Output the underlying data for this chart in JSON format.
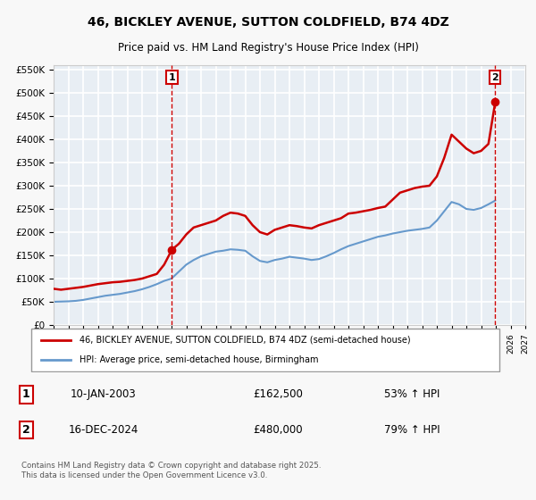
{
  "title": "46, BICKLEY AVENUE, SUTTON COLDFIELD, B74 4DZ",
  "subtitle": "Price paid vs. HM Land Registry's House Price Index (HPI)",
  "legend_line1": "46, BICKLEY AVENUE, SUTTON COLDFIELD, B74 4DZ (semi-detached house)",
  "legend_line2": "HPI: Average price, semi-detached house, Birmingham",
  "label1_date": "10-JAN-2003",
  "label1_price": "£162,500",
  "label1_hpi": "53% ↑ HPI",
  "label2_date": "16-DEC-2024",
  "label2_price": "£480,000",
  "label2_hpi": "79% ↑ HPI",
  "marker1_year": 2003.03,
  "marker1_value": 162500,
  "marker2_year": 2024.96,
  "marker2_value": 480000,
  "vline1_year": 2003.03,
  "vline2_year": 2024.96,
  "red_color": "#cc0000",
  "blue_color": "#6699cc",
  "background_color": "#f0f4f8",
  "plot_bg_color": "#e8eef4",
  "grid_color": "#ffffff",
  "ylim": [
    0,
    560000
  ],
  "xlim_start": 1995,
  "xlim_end": 2027,
  "footer": "Contains HM Land Registry data © Crown copyright and database right 2025.\nThis data is licensed under the Open Government Licence v3.0.",
  "red_series_years": [
    1995.0,
    1995.5,
    1996.0,
    1996.5,
    1997.0,
    1997.5,
    1998.0,
    1998.5,
    1999.0,
    1999.5,
    2000.0,
    2000.5,
    2001.0,
    2001.5,
    2002.0,
    2002.5,
    2003.03,
    2003.5,
    2004.0,
    2004.5,
    2005.0,
    2005.5,
    2006.0,
    2006.5,
    2007.0,
    2007.5,
    2008.0,
    2008.5,
    2009.0,
    2009.5,
    2010.0,
    2010.5,
    2011.0,
    2011.5,
    2012.0,
    2012.5,
    2013.0,
    2013.5,
    2014.0,
    2014.5,
    2015.0,
    2015.5,
    2016.0,
    2016.5,
    2017.0,
    2017.5,
    2018.0,
    2018.5,
    2019.0,
    2019.5,
    2020.0,
    2020.5,
    2021.0,
    2021.5,
    2022.0,
    2022.5,
    2023.0,
    2023.5,
    2024.0,
    2024.5,
    2024.96
  ],
  "red_series_values": [
    78000,
    76000,
    78000,
    80000,
    82000,
    85000,
    88000,
    90000,
    92000,
    93000,
    95000,
    97000,
    100000,
    105000,
    110000,
    130000,
    162500,
    175000,
    195000,
    210000,
    215000,
    220000,
    225000,
    235000,
    242000,
    240000,
    235000,
    215000,
    200000,
    195000,
    205000,
    210000,
    215000,
    213000,
    210000,
    208000,
    215000,
    220000,
    225000,
    230000,
    240000,
    242000,
    245000,
    248000,
    252000,
    255000,
    270000,
    285000,
    290000,
    295000,
    298000,
    300000,
    320000,
    360000,
    410000,
    395000,
    380000,
    370000,
    375000,
    390000,
    480000
  ],
  "blue_series_years": [
    1995.0,
    1995.5,
    1996.0,
    1996.5,
    1997.0,
    1997.5,
    1998.0,
    1998.5,
    1999.0,
    1999.5,
    2000.0,
    2000.5,
    2001.0,
    2001.5,
    2002.0,
    2002.5,
    2003.0,
    2003.5,
    2004.0,
    2004.5,
    2005.0,
    2005.5,
    2006.0,
    2006.5,
    2007.0,
    2007.5,
    2008.0,
    2008.5,
    2009.0,
    2009.5,
    2010.0,
    2010.5,
    2011.0,
    2011.5,
    2012.0,
    2012.5,
    2013.0,
    2013.5,
    2014.0,
    2014.5,
    2015.0,
    2015.5,
    2016.0,
    2016.5,
    2017.0,
    2017.5,
    2018.0,
    2018.5,
    2019.0,
    2019.5,
    2020.0,
    2020.5,
    2021.0,
    2021.5,
    2022.0,
    2022.5,
    2023.0,
    2023.5,
    2024.0,
    2024.5,
    2024.96
  ],
  "blue_series_values": [
    50000,
    50500,
    51000,
    52000,
    54000,
    57000,
    60000,
    63000,
    65000,
    67000,
    70000,
    73000,
    77000,
    82000,
    88000,
    95000,
    100000,
    115000,
    130000,
    140000,
    148000,
    153000,
    158000,
    160000,
    163000,
    162000,
    160000,
    148000,
    138000,
    135000,
    140000,
    143000,
    147000,
    145000,
    143000,
    140000,
    142000,
    148000,
    155000,
    163000,
    170000,
    175000,
    180000,
    185000,
    190000,
    193000,
    197000,
    200000,
    203000,
    205000,
    207000,
    210000,
    225000,
    245000,
    265000,
    260000,
    250000,
    248000,
    252000,
    260000,
    268000
  ]
}
